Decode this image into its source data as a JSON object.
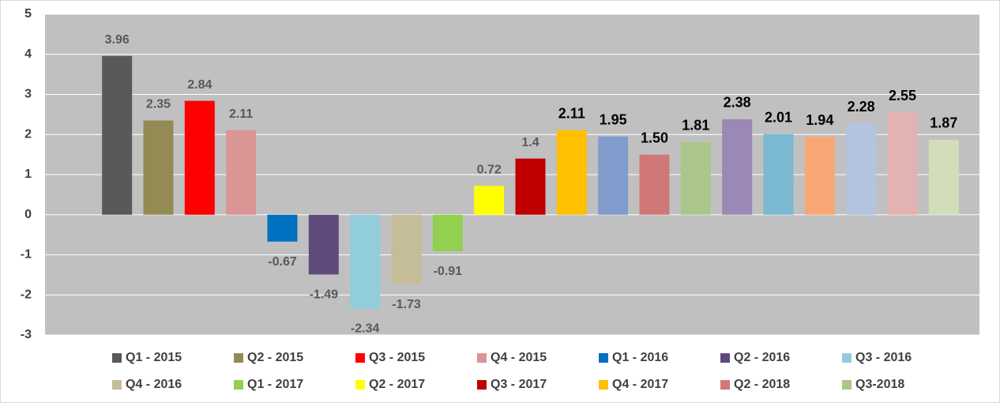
{
  "chart_data": {
    "type": "bar",
    "categories": [
      "Q1 - 2015",
      "Q2 - 2015",
      "Q3 - 2015",
      "Q4 - 2015",
      "Q1 - 2016",
      "Q2 - 2016",
      "Q3 - 2016",
      "Q4 - 2016",
      "Q1 - 2017",
      "Q2 - 2017",
      "Q3 - 2017",
      "Q4 - 2017",
      null,
      "Q2 - 2018",
      "Q3-2018",
      null,
      null,
      null,
      null,
      null,
      null
    ],
    "values": [
      3.96,
      2.35,
      2.84,
      2.11,
      -0.67,
      -1.49,
      -2.34,
      -1.73,
      -0.91,
      0.72,
      1.4,
      2.11,
      1.95,
      1.5,
      1.81,
      2.38,
      2.01,
      1.94,
      2.28,
      2.55,
      1.87
    ],
    "value_labels": [
      "3.96",
      "2.35",
      "2.84",
      "2.11",
      "-0.67",
      "-1.49",
      "-2.34",
      "-1.73",
      "-0.91",
      "0.72",
      "1.4",
      "2.11",
      "1.95",
      "1.50",
      "1.81",
      "2.38",
      "2.01",
      "1.94",
      "2.28",
      "2.55",
      "1.87"
    ],
    "colors": [
      "#595959",
      "#948a54",
      "#ff0000",
      "#da9694",
      "#0070c0",
      "#604a7b",
      "#92cddc",
      "#c4bd97",
      "#92d050",
      "#ffff00",
      "#c00000",
      "#ffc000",
      "#7f9ccc",
      "#d07878",
      "#aac68a",
      "#9b88b5",
      "#7ab9d1",
      "#f8a673",
      "#b4c3e0",
      "#e3b3b3",
      "#d1deb9"
    ],
    "ylim": [
      -3,
      5
    ],
    "yticks": [
      -3,
      -2,
      -1,
      0,
      1,
      2,
      3,
      4,
      5
    ],
    "grid": true,
    "legend": "bottom"
  }
}
